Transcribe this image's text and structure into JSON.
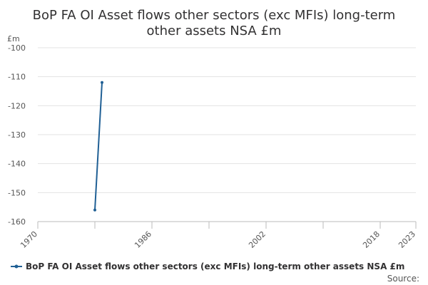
{
  "chart_data": {
    "type": "line",
    "title_lines": [
      "BoP FA OI Asset flows other sectors (exc MFIs) long-term",
      "other assets NSA £m"
    ],
    "unit": "£m",
    "xlabel": "",
    "ylabel": "",
    "xlim": [
      1970,
      2023
    ],
    "ylim": [
      -160,
      -100
    ],
    "y_ticks": [
      -100,
      -110,
      -120,
      -130,
      -140,
      -150,
      -160
    ],
    "x_tick_labels": [
      "1970",
      "1986",
      "2002",
      "2018",
      "2023"
    ],
    "x_tick_positions": [
      1970,
      1978,
      1986,
      1994,
      2002,
      2010,
      2018,
      2023
    ],
    "grid": "horizontal",
    "legend_position": "bottom",
    "source_label": "Source:",
    "series": [
      {
        "name": "BoP FA OI Asset flows other sectors (exc MFIs) long-term other assets NSA £m",
        "color": "#206095",
        "points": [
          {
            "x": 1978,
            "y": -156
          },
          {
            "x": 1979,
            "y": -112
          }
        ]
      }
    ]
  }
}
